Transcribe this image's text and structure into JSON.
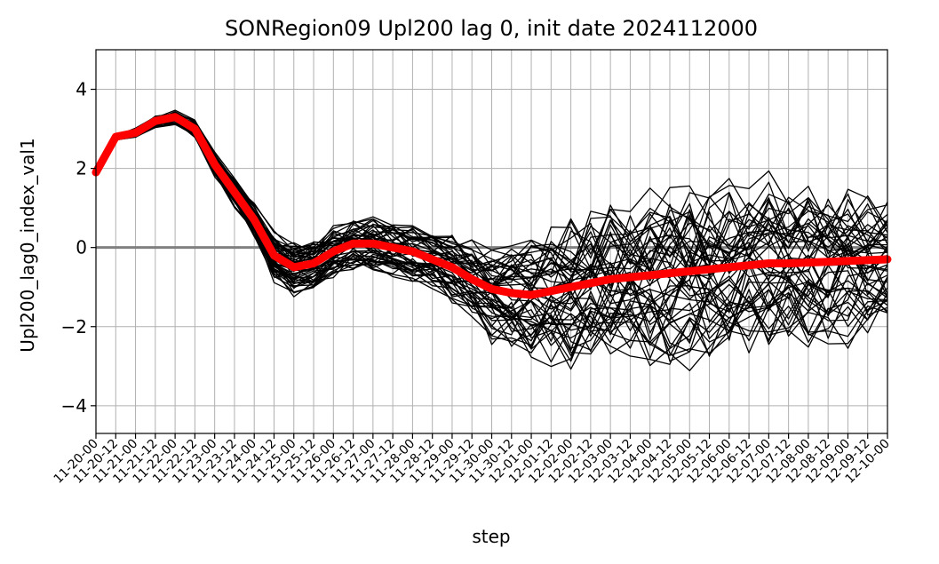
{
  "chart_data": {
    "type": "line",
    "title": "SONRegion09 Upl200 lag 0, init date 2024112000",
    "xlabel": "step",
    "ylabel": "Upl200_lag0_index_val1",
    "x_ticks": [
      "11-20-00",
      "11-20-12",
      "11-21-00",
      "11-21-12",
      "11-22-00",
      "11-22-12",
      "11-23-00",
      "11-23-12",
      "11-24-00",
      "11-24-12",
      "11-25-00",
      "11-25-12",
      "11-26-00",
      "11-26-12",
      "11-27-00",
      "11-27-12",
      "11-28-00",
      "11-28-12",
      "11-29-00",
      "11-29-12",
      "11-30-00",
      "11-30-12",
      "12-01-00",
      "12-01-12",
      "12-02-00",
      "12-02-12",
      "12-03-00",
      "12-03-12",
      "12-04-00",
      "12-04-12",
      "12-05-00",
      "12-05-12",
      "12-06-00",
      "12-06-12",
      "12-07-00",
      "12-07-12",
      "12-08-00",
      "12-08-12",
      "12-09-00",
      "12-09-12",
      "12-10-00"
    ],
    "y_ticks": [
      -4,
      -2,
      0,
      2,
      4
    ],
    "y_tick_labels": [
      "−4",
      "−2",
      "0",
      "2",
      "4"
    ],
    "ylim": [
      -4.7,
      5.0
    ],
    "grid": true,
    "zero_line_color": "#808080",
    "member_color": "#000000",
    "mean_color": "#ff0000",
    "ensemble_members": 50,
    "ensemble_mean": [
      1.9,
      2.8,
      2.9,
      3.2,
      3.3,
      3.0,
      2.1,
      1.4,
      0.7,
      -0.2,
      -0.5,
      -0.4,
      -0.1,
      0.1,
      0.1,
      0.0,
      -0.1,
      -0.3,
      -0.5,
      -0.8,
      -1.05,
      -1.15,
      -1.2,
      -1.1,
      -1.0,
      -0.9,
      -0.8,
      -0.75,
      -0.7,
      -0.65,
      -0.6,
      -0.55,
      -0.5,
      -0.45,
      -0.4,
      -0.4,
      -0.38,
      -0.36,
      -0.34,
      -0.32,
      -0.3
    ],
    "ensemble_spread": [
      0.05,
      0.05,
      0.08,
      0.1,
      0.12,
      0.15,
      0.2,
      0.25,
      0.3,
      0.4,
      0.45,
      0.45,
      0.45,
      0.45,
      0.45,
      0.45,
      0.45,
      0.5,
      0.55,
      0.65,
      0.8,
      0.95,
      1.05,
      1.15,
      1.25,
      1.3,
      1.35,
      1.4,
      1.45,
      1.5,
      1.55,
      1.55,
      1.55,
      1.5,
      1.5,
      1.45,
      1.4,
      1.35,
      1.3,
      1.25,
      1.2
    ]
  }
}
